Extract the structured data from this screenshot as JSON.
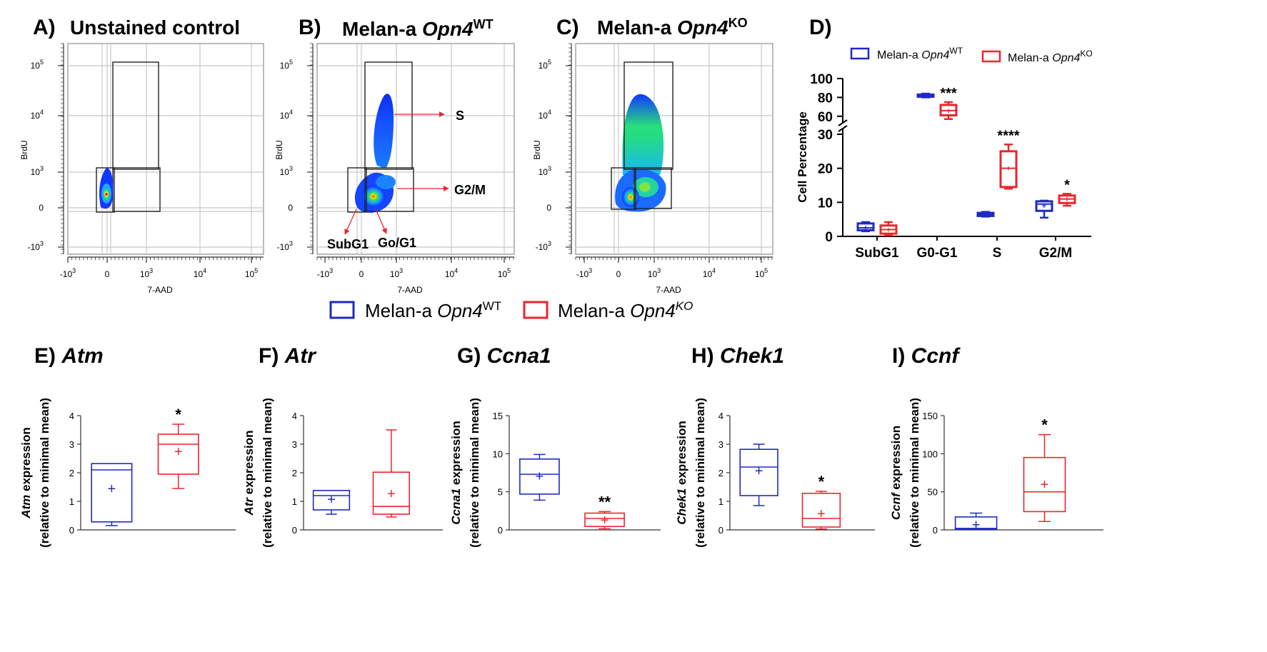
{
  "colors": {
    "wt": "#1f2bbf",
    "ko": "#e8272d",
    "gate": "#222222",
    "grid": "#c8c8c8",
    "arrow": "#e8272d"
  },
  "flow_panels": [
    {
      "letter": "A)",
      "title": "Unstained control",
      "title_italic": "",
      "title_sup": "",
      "xlabel": "7-AAD",
      "ylabel": "BrdU",
      "xticks": [
        "-10",
        "0",
        "10",
        "10",
        "10"
      ],
      "xtick_exp": [
        "3",
        "",
        "3",
        "4",
        "5"
      ],
      "yticks": [
        "10",
        "10",
        "10",
        "0",
        "-10"
      ],
      "ytick_exp": [
        "5",
        "4",
        "3",
        "",
        "3"
      ],
      "labels": []
    },
    {
      "letter": "B)",
      "title": "Melan-a ",
      "title_italic": "Opn4",
      "title_sup": "WT",
      "xlabel": "7-AAD",
      "ylabel": "BrdU",
      "xticks": [
        "-10",
        "0",
        "10",
        "10",
        "10"
      ],
      "xtick_exp": [
        "3",
        "",
        "3",
        "4",
        "5"
      ],
      "yticks": [
        "10",
        "10",
        "10",
        "0",
        "-10"
      ],
      "ytick_exp": [
        "5",
        "4",
        "3",
        "",
        "3"
      ],
      "labels": [
        "S",
        "G2/M",
        "SubG1",
        "Go/G1"
      ]
    },
    {
      "letter": "C)",
      "title": "Melan-a ",
      "title_italic": "Opn4",
      "title_sup": "KO",
      "xlabel": "7-AAD",
      "ylabel": "BrdU",
      "xticks": [
        "-10",
        "0",
        "10",
        "10",
        "10"
      ],
      "xtick_exp": [
        "3",
        "",
        "3",
        "4",
        "5"
      ],
      "yticks": [
        "10",
        "10",
        "10",
        "0",
        "-10"
      ],
      "ytick_exp": [
        "5",
        "4",
        "3",
        "",
        "3"
      ],
      "labels": []
    }
  ],
  "legend_main": {
    "wt_label": "Melan-a ",
    "wt_italic": "Opn4",
    "wt_sup": "WT",
    "ko_label": "Melan-a ",
    "ko_italic": "Opn4",
    "ko_sup": "KO"
  },
  "chart_data": [
    {
      "type": "box",
      "panel": "D)",
      "title": "",
      "ylabel": "Cell Percentage",
      "xlabel": "",
      "broken_axis": {
        "lower": [
          0,
          30
        ],
        "upper": [
          50,
          100
        ]
      },
      "yticks_lower": [
        "0",
        "10",
        "20",
        "30"
      ],
      "yticks_upper": [
        "60",
        "80",
        "100"
      ],
      "categories": [
        "SubG1",
        "G0-G1",
        "S",
        "G2/M"
      ],
      "legend": {
        "wt_label": "Melan-a ",
        "wt_italic": "Opn4",
        "wt_sup": "WT",
        "ko_label": "Melan-a ",
        "ko_italic": "Opn4",
        "ko_sup": "KO"
      },
      "series": [
        {
          "name": "Melan-a Opn4WT",
          "boxes": [
            {
              "min": 1.5,
              "q1": 1.8,
              "median": 2.5,
              "q3": 3.8,
              "max": 4.2,
              "mean": 2.6
            },
            {
              "min": 80,
              "q1": 81,
              "median": 82,
              "q3": 83,
              "max": 84,
              "mean": 82
            },
            {
              "min": 5.8,
              "q1": 6.0,
              "median": 6.4,
              "q3": 6.9,
              "max": 7.2,
              "mean": 6.4
            },
            {
              "min": 5.5,
              "q1": 7.5,
              "median": 9.5,
              "q3": 10.3,
              "max": 10.5,
              "mean": 9.0
            }
          ]
        },
        {
          "name": "Melan-a Opn4KO",
          "boxes": [
            {
              "min": 0.3,
              "q1": 0.8,
              "median": 2.0,
              "q3": 3.2,
              "max": 4.2,
              "mean": 2.0
            },
            {
              "min": 57,
              "q1": 61,
              "median": 66,
              "q3": 72,
              "max": 75,
              "mean": 66
            },
            {
              "min": 14.0,
              "q1": 14.5,
              "median": 20.0,
              "q3": 25.0,
              "max": 27.0,
              "mean": 20.0
            },
            {
              "min": 9.0,
              "q1": 9.8,
              "median": 11.0,
              "q3": 12.0,
              "max": 12.5,
              "mean": 11.0
            }
          ]
        }
      ],
      "significance": [
        "",
        "***",
        "****",
        "*"
      ]
    },
    {
      "type": "box",
      "panel": "E)",
      "title": "Atm",
      "ylabel_italic": "Atm",
      "ylabel_rest": " expression",
      "ylabel2": "(relative to minimal mean)",
      "ylim": [
        0,
        4
      ],
      "yticks": [
        "0",
        "1",
        "2",
        "3",
        "4"
      ],
      "series": [
        {
          "name": "Melan-a Opn4WT",
          "box": {
            "min": 0.15,
            "q1": 0.28,
            "median": 2.1,
            "q3": 2.32,
            "max": 2.32,
            "mean": 1.45
          }
        },
        {
          "name": "Melan-a Opn4KO",
          "box": {
            "min": 1.45,
            "q1": 1.95,
            "median": 3.0,
            "q3": 3.35,
            "max": 3.7,
            "mean": 2.75
          }
        }
      ],
      "significance": "*"
    },
    {
      "type": "box",
      "panel": "F)",
      "title": "Atr",
      "ylabel_italic": "Atr",
      "ylabel_rest": " expression",
      "ylabel2": "(relative to minimal mean)",
      "ylim": [
        0,
        4
      ],
      "yticks": [
        "0",
        "1",
        "2",
        "3",
        "4"
      ],
      "series": [
        {
          "name": "Melan-a Opn4WT",
          "box": {
            "min": 0.55,
            "q1": 0.7,
            "median": 1.2,
            "q3": 1.38,
            "max": 1.38,
            "mean": 1.08
          }
        },
        {
          "name": "Melan-a Opn4KO",
          "box": {
            "min": 0.45,
            "q1": 0.55,
            "median": 0.82,
            "q3": 2.02,
            "max": 3.5,
            "mean": 1.28
          }
        }
      ],
      "significance": ""
    },
    {
      "type": "box",
      "panel": "G)",
      "title": "Ccna1",
      "ylabel_italic": "Ccna1",
      "ylabel_rest": " expression",
      "ylabel2": "(relative to minimal mean)",
      "ylim": [
        0,
        15
      ],
      "yticks": [
        "0",
        "5",
        "10",
        "15"
      ],
      "series": [
        {
          "name": "Melan-a Opn4WT",
          "box": {
            "min": 3.9,
            "q1": 4.7,
            "median": 7.3,
            "q3": 9.3,
            "max": 9.9,
            "mean": 7.1
          }
        },
        {
          "name": "Melan-a Opn4KO",
          "box": {
            "min": 0.15,
            "q1": 0.45,
            "median": 1.5,
            "q3": 2.2,
            "max": 2.4,
            "mean": 1.3
          }
        }
      ],
      "significance": "**"
    },
    {
      "type": "box",
      "panel": "H)",
      "title": "Chek1",
      "ylabel_italic": "Chek1",
      "ylabel_rest": " expression",
      "ylabel2": "(relative to minimal mean)",
      "ylim": [
        0,
        4
      ],
      "yticks": [
        "0",
        "1",
        "2",
        "3",
        "4"
      ],
      "series": [
        {
          "name": "Melan-a Opn4WT",
          "box": {
            "min": 0.85,
            "q1": 1.2,
            "median": 2.2,
            "q3": 2.82,
            "max": 3.0,
            "mean": 2.08
          }
        },
        {
          "name": "Melan-a Opn4KO",
          "box": {
            "min": 0.03,
            "q1": 0.1,
            "median": 0.4,
            "q3": 1.28,
            "max": 1.35,
            "mean": 0.58
          }
        }
      ],
      "significance": "*"
    },
    {
      "type": "box",
      "panel": "I)",
      "title": "Ccnf",
      "ylabel_italic": "Ccnf",
      "ylabel_rest": "  expression",
      "ylabel2": "(relative to minimal mean)",
      "ylim": [
        0,
        150
      ],
      "yticks": [
        "0",
        "50",
        "100",
        "150"
      ],
      "series": [
        {
          "name": "Melan-a Opn4WT",
          "box": {
            "min": 1,
            "q1": 1,
            "median": 2,
            "q3": 17,
            "max": 22,
            "mean": 7
          }
        },
        {
          "name": "Melan-a Opn4KO",
          "box": {
            "min": 11,
            "q1": 24,
            "median": 50,
            "q3": 95,
            "max": 125,
            "mean": 60
          }
        }
      ],
      "significance": "*"
    }
  ]
}
